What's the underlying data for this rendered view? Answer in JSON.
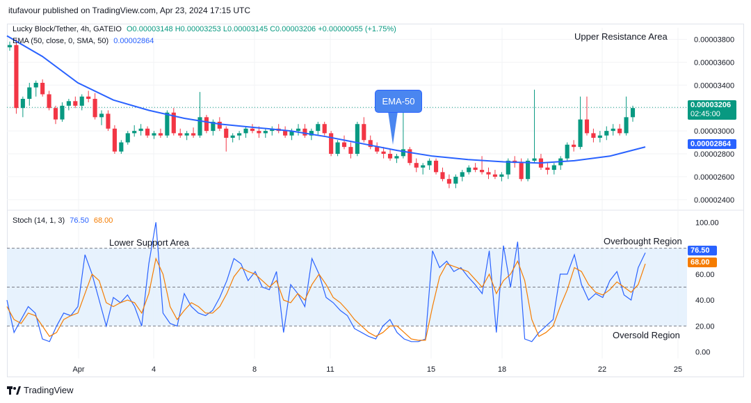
{
  "header": {
    "publisher_line": "itufavour published on TradingView.com, Apr 23, 2024 17:15 UTC"
  },
  "legend": {
    "symbol": "Lucky Block/Tether, 4h, GATEIO",
    "ohlc": "O0.00003148 H0.00003253 L0.00003145 C0.00003206 +0.00000055 (+1.75%)",
    "ema_label": "EMA (50, close, 0, SMA, 50)",
    "ema_value": "0.00002864",
    "stoch_label": "Stoch (14, 1, 3)",
    "stoch_k": "76.50",
    "stoch_d": "68.00"
  },
  "annotations": {
    "upper_resistance": "Upper Resistance Area",
    "lower_support": "Lower Support Area",
    "overbought": "Overbought Region",
    "oversold": "Oversold Region",
    "ema_callout": "EMA-50"
  },
  "price_tags": {
    "last_price": "0.00003206",
    "countdown": "02:45:00",
    "ema": "0.00002864",
    "stoch_k": "76.50",
    "stoch_d": "68.00"
  },
  "colors": {
    "up": "#089981",
    "down": "#f23645",
    "ema": "#2962ff",
    "stoch_k": "#2962ff",
    "stoch_d": "#f57c00"
  },
  "footer": {
    "brand": "TradingView"
  },
  "chart_data": [
    {
      "type": "candlestick-line",
      "title": "Lucky Block/Tether, 4h, GATEIO",
      "y_ticks": [
        "0.00003800",
        "0.00003600",
        "0.00003400",
        "0.00003200",
        "0.00003000",
        "0.00002800",
        "0.00002600",
        "0.00002400"
      ],
      "x_ticks": [
        "Apr",
        "4",
        "8",
        "11",
        "15",
        "18",
        "22",
        "25"
      ],
      "ylim": [
        2.32e-05,
        3.9e-05
      ],
      "last_close": 3.206e-05,
      "ema50_last": 2.864e-05,
      "ema50_path": [
        [
          0,
          3.83e-05
        ],
        [
          10,
          3.65e-05
        ],
        [
          20,
          3.42e-05
        ],
        [
          30,
          3.27e-05
        ],
        [
          40,
          3.18e-05
        ],
        [
          50,
          3.11e-05
        ],
        [
          60,
          3.06e-05
        ],
        [
          70,
          3.03e-05
        ],
        [
          80,
          3e-05
        ],
        [
          90,
          2.95e-05
        ],
        [
          100,
          2.89e-05
        ],
        [
          110,
          2.83e-05
        ],
        [
          120,
          2.78e-05
        ],
        [
          130,
          2.75e-05
        ],
        [
          140,
          2.73e-05
        ],
        [
          150,
          2.72e-05
        ],
        [
          160,
          2.74e-05
        ],
        [
          170,
          2.78e-05
        ],
        [
          180,
          2.86e-05
        ]
      ],
      "candles": [
        [
          3.73e-05,
          3.78e-05,
          3.7e-05,
          3.75e-05
        ],
        [
          3.75e-05,
          3.8e-05,
          3.15e-05,
          3.2e-05
        ],
        [
          3.2e-05,
          3.3e-05,
          3.12e-05,
          3.28e-05
        ],
        [
          3.28e-05,
          3.42e-05,
          3.22e-05,
          3.38e-05
        ],
        [
          3.38e-05,
          3.44e-05,
          3.3e-05,
          3.42e-05
        ],
        [
          3.42e-05,
          3.45e-05,
          3.3e-05,
          3.32e-05
        ],
        [
          3.32e-05,
          3.35e-05,
          3.18e-05,
          3.2e-05
        ],
        [
          3.2e-05,
          3.22e-05,
          3.06e-05,
          3.1e-05
        ],
        [
          3.1e-05,
          3.25e-05,
          3.08e-05,
          3.22e-05
        ],
        [
          3.22e-05,
          3.28e-05,
          3.18e-05,
          3.26e-05
        ],
        [
          3.26e-05,
          3.3e-05,
          3.2e-05,
          3.22e-05
        ],
        [
          3.22e-05,
          3.32e-05,
          3.18e-05,
          3.3e-05
        ],
        [
          3.3e-05,
          3.35e-05,
          3.25e-05,
          3.28e-05
        ],
        [
          3.28e-05,
          3.33e-05,
          3.1e-05,
          3.12e-05
        ],
        [
          3.12e-05,
          3.18e-05,
          3.05e-05,
          3.15e-05
        ],
        [
          3.15e-05,
          3.18e-05,
          3e-05,
          3.02e-05
        ],
        [
          3.02e-05,
          3.05e-05,
          2.8e-05,
          2.82e-05
        ],
        [
          2.82e-05,
          2.92e-05,
          2.8e-05,
          2.9e-05
        ],
        [
          2.9e-05,
          3e-05,
          2.88e-05,
          2.98e-05
        ],
        [
          2.98e-05,
          3.05e-05,
          2.95e-05,
          3e-05
        ],
        [
          3e-05,
          3.06e-05,
          2.96e-05,
          3.02e-05
        ],
        [
          3.02e-05,
          3.04e-05,
          2.94e-05,
          2.96e-05
        ],
        [
          2.96e-05,
          3e-05,
          2.93e-05,
          2.98e-05
        ],
        [
          2.98e-05,
          3.02e-05,
          2.94e-05,
          2.96e-05
        ],
        [
          2.96e-05,
          3.18e-05,
          2.94e-05,
          3.16e-05
        ],
        [
          3.16e-05,
          3.2e-05,
          2.96e-05,
          2.98e-05
        ],
        [
          2.98e-05,
          3.02e-05,
          2.94e-05,
          2.96e-05
        ],
        [
          2.96e-05,
          3e-05,
          2.92e-05,
          2.98e-05
        ],
        [
          2.98e-05,
          3.03e-05,
          2.94e-05,
          2.96e-05
        ],
        [
          2.96e-05,
          3.34e-05,
          2.94e-05,
          3.12e-05
        ],
        [
          3.12e-05,
          3.14e-05,
          2.98e-05,
          3e-05
        ],
        [
          3e-05,
          3.1e-05,
          2.96e-05,
          3.08e-05
        ],
        [
          3.08e-05,
          3.12e-05,
          3e-05,
          3.02e-05
        ],
        [
          3.02e-05,
          3.04e-05,
          2.82e-05,
          2.94e-05
        ],
        [
          2.94e-05,
          2.98e-05,
          2.9e-05,
          2.96e-05
        ],
        [
          2.96e-05,
          3e-05,
          2.92e-05,
          2.98e-05
        ],
        [
          2.98e-05,
          3.04e-05,
          2.94e-05,
          3.02e-05
        ],
        [
          3.02e-05,
          3.06e-05,
          2.98e-05,
          3e-05
        ],
        [
          3e-05,
          3.04e-05,
          2.94e-05,
          2.98e-05
        ],
        [
          2.98e-05,
          3.02e-05,
          2.94e-05,
          3e-05
        ],
        [
          3e-05,
          3.04e-05,
          2.96e-05,
          3.02e-05
        ],
        [
          3.02e-05,
          3.06e-05,
          2.98e-05,
          3e-05
        ],
        [
          3e-05,
          3.04e-05,
          2.94e-05,
          2.96e-05
        ],
        [
          2.96e-05,
          3.02e-05,
          2.92e-05,
          3e-05
        ],
        [
          3e-05,
          3.06e-05,
          2.96e-05,
          3.02e-05
        ],
        [
          3.02e-05,
          3.06e-05,
          2.94e-05,
          2.96e-05
        ],
        [
          2.96e-05,
          3.02e-05,
          2.92e-05,
          3e-05
        ],
        [
          3e-05,
          3.08e-05,
          2.96e-05,
          3.06e-05
        ],
        [
          3.06e-05,
          3.08e-05,
          2.96e-05,
          2.98e-05
        ],
        [
          2.98e-05,
          3e-05,
          2.78e-05,
          2.8e-05
        ],
        [
          2.8e-05,
          2.92e-05,
          2.78e-05,
          2.9e-05
        ],
        [
          2.9e-05,
          2.96e-05,
          2.84e-05,
          2.86e-05
        ],
        [
          2.86e-05,
          2.9e-05,
          2.76e-05,
          2.8e-05
        ],
        [
          2.8e-05,
          3.08e-05,
          2.78e-05,
          3.06e-05
        ],
        [
          3.06e-05,
          3.12e-05,
          2.9e-05,
          2.92e-05
        ],
        [
          2.92e-05,
          2.96e-05,
          2.84e-05,
          2.86e-05
        ],
        [
          2.86e-05,
          2.9e-05,
          2.8e-05,
          2.82e-05
        ],
        [
          2.82e-05,
          2.86e-05,
          2.76e-05,
          2.8e-05
        ],
        [
          2.8e-05,
          2.84e-05,
          2.74e-05,
          2.76e-05
        ],
        [
          2.76e-05,
          2.8e-05,
          2.72e-05,
          2.78e-05
        ],
        [
          2.78e-05,
          3.34e-05,
          2.76e-05,
          2.84e-05
        ],
        [
          2.84e-05,
          2.86e-05,
          2.7e-05,
          2.72e-05
        ],
        [
          2.72e-05,
          2.76e-05,
          2.64e-05,
          2.68e-05
        ],
        [
          2.68e-05,
          2.72e-05,
          2.62e-05,
          2.7e-05
        ],
        [
          2.7e-05,
          2.76e-05,
          2.66e-05,
          2.74e-05
        ],
        [
          2.74e-05,
          2.76e-05,
          2.62e-05,
          2.64e-05
        ],
        [
          2.64e-05,
          2.68e-05,
          2.56e-05,
          2.58e-05
        ],
        [
          2.58e-05,
          2.62e-05,
          2.5e-05,
          2.54e-05
        ],
        [
          2.54e-05,
          2.62e-05,
          2.5e-05,
          2.6e-05
        ],
        [
          2.6e-05,
          2.66e-05,
          2.56e-05,
          2.64e-05
        ],
        [
          2.64e-05,
          2.7e-05,
          2.62e-05,
          2.68e-05
        ],
        [
          2.68e-05,
          2.72e-05,
          2.64e-05,
          2.66e-05
        ],
        [
          2.66e-05,
          2.78e-05,
          2.62e-05,
          2.64e-05
        ],
        [
          2.64e-05,
          2.68e-05,
          2.58e-05,
          2.62e-05
        ],
        [
          2.62e-05,
          2.66e-05,
          2.58e-05,
          2.6e-05
        ],
        [
          2.6e-05,
          2.64e-05,
          2.56e-05,
          2.62e-05
        ],
        [
          2.62e-05,
          2.76e-05,
          2.58e-05,
          2.74e-05
        ],
        [
          2.74e-05,
          2.78e-05,
          2.68e-05,
          2.72e-05
        ],
        [
          2.72e-05,
          2.76e-05,
          2.56e-05,
          2.58e-05
        ],
        [
          2.58e-05,
          2.76e-05,
          2.56e-05,
          2.74e-05
        ],
        [
          2.74e-05,
          3.36e-05,
          2.72e-05,
          2.76e-05
        ],
        [
          2.76e-05,
          2.8e-05,
          2.66e-05,
          2.68e-05
        ],
        [
          2.68e-05,
          2.72e-05,
          2.62e-05,
          2.66e-05
        ],
        [
          2.66e-05,
          2.72e-05,
          2.62e-05,
          2.7e-05
        ],
        [
          2.7e-05,
          2.78e-05,
          2.66e-05,
          2.76e-05
        ],
        [
          2.76e-05,
          2.9e-05,
          2.74e-05,
          2.88e-05
        ],
        [
          2.88e-05,
          2.92e-05,
          2.82e-05,
          2.86e-05
        ],
        [
          2.86e-05,
          3.3e-05,
          2.84e-05,
          3.1e-05
        ],
        [
          3.1e-05,
          3.3e-05,
          2.96e-05,
          2.98e-05
        ],
        [
          2.98e-05,
          3.02e-05,
          2.9e-05,
          2.94e-05
        ],
        [
          2.94e-05,
          3e-05,
          2.9e-05,
          2.96e-05
        ],
        [
          2.96e-05,
          3.04e-05,
          2.92e-05,
          3e-05
        ],
        [
          3e-05,
          3.06e-05,
          2.96e-05,
          3.02e-05
        ],
        [
          3.02e-05,
          3.06e-05,
          2.96e-05,
          2.98e-05
        ],
        [
          2.98e-05,
          3.3e-05,
          2.96e-05,
          3.12e-05
        ],
        [
          3.12e-05,
          3.22e-05,
          3.08e-05,
          3.2e-05
        ]
      ]
    },
    {
      "type": "line",
      "title": "Stoch (14, 1, 3)",
      "y_ticks": [
        "100.00",
        "80.00",
        "60.00",
        "40.00",
        "20.00",
        "0.00"
      ],
      "ylim": [
        -5,
        105
      ],
      "bands": {
        "upper": 80,
        "middle": 50,
        "lower": 20
      },
      "series": [
        {
          "name": "K",
          "values": [
            40,
            15,
            25,
            35,
            30,
            10,
            8,
            20,
            30,
            28,
            35,
            75,
            60,
            40,
            20,
            42,
            38,
            44,
            35,
            20,
            68,
            100,
            30,
            22,
            20,
            45,
            35,
            30,
            28,
            32,
            42,
            55,
            72,
            68,
            55,
            62,
            50,
            48,
            62,
            15,
            52,
            45,
            35,
            72,
            60,
            42,
            38,
            32,
            28,
            18,
            15,
            12,
            10,
            20,
            25,
            15,
            10,
            8,
            8,
            10,
            78,
            65,
            70,
            62,
            65,
            58,
            52,
            45,
            78,
            15,
            82,
            50,
            85,
            10,
            8,
            15,
            20,
            25,
            60,
            60,
            75,
            52,
            40,
            45,
            42,
            55,
            62,
            44,
            40,
            65,
            76.5
          ]
        },
        {
          "name": "D",
          "values": [
            35,
            25,
            22,
            30,
            28,
            20,
            12,
            15,
            25,
            28,
            30,
            45,
            60,
            55,
            38,
            35,
            38,
            40,
            38,
            30,
            45,
            72,
            60,
            35,
            25,
            32,
            38,
            35,
            30,
            30,
            35,
            45,
            58,
            65,
            62,
            60,
            55,
            50,
            55,
            40,
            38,
            45,
            40,
            52,
            60,
            52,
            42,
            38,
            32,
            25,
            20,
            15,
            12,
            15,
            20,
            20,
            15,
            10,
            9,
            9,
            35,
            58,
            68,
            66,
            64,
            62,
            56,
            50,
            60,
            45,
            55,
            60,
            70,
            55,
            25,
            12,
            15,
            20,
            35,
            48,
            65,
            62,
            52,
            46,
            44,
            48,
            54,
            50,
            46,
            52,
            68
          ]
        }
      ]
    }
  ]
}
